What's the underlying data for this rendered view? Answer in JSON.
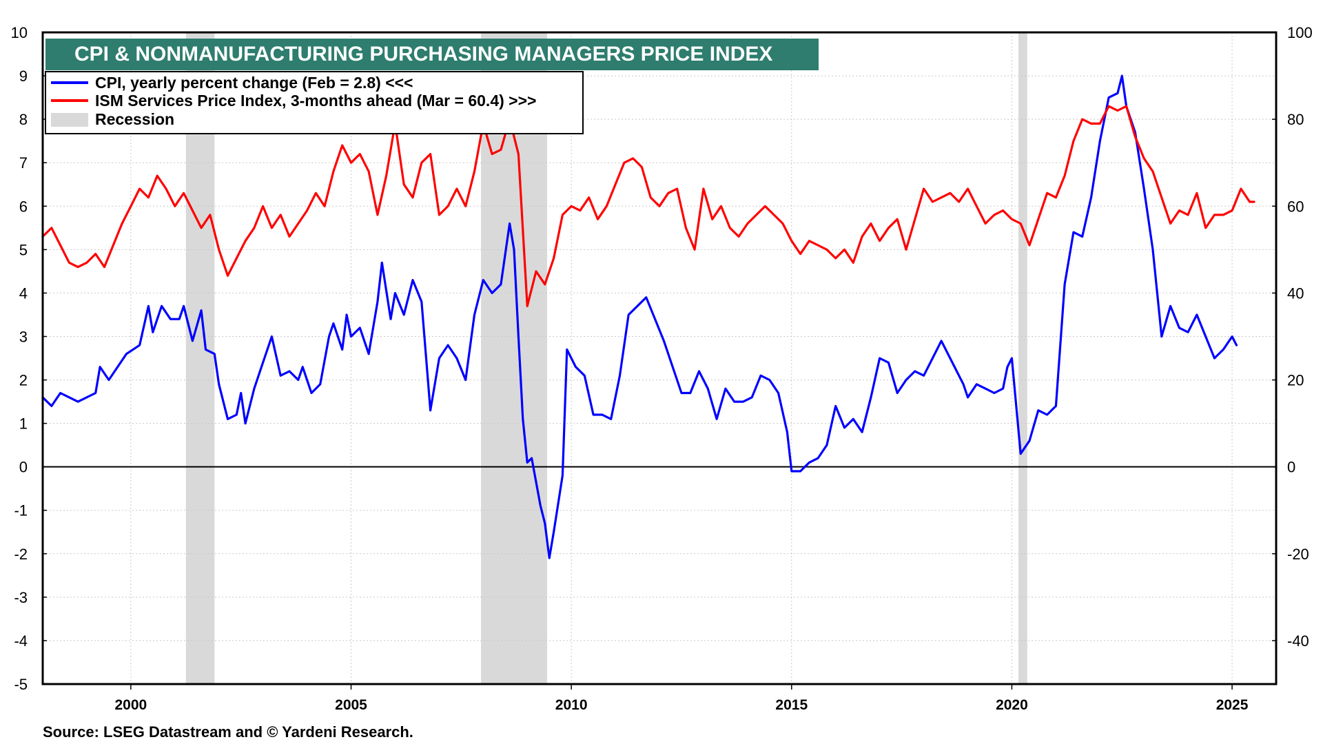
{
  "chart_data": {
    "type": "line",
    "title": "CPI & NONMANUFACTURING PURCHASING MANAGERS PRICE INDEX",
    "source": "Source: LSEG Datastream and © Yardeni Research.",
    "x_axis": {
      "min": 1998.0,
      "max": 2026.0,
      "ticks": [
        2000,
        2005,
        2010,
        2015,
        2020,
        2025
      ],
      "tick_labels": [
        "2000",
        "2005",
        "2010",
        "2015",
        "2020",
        "2025"
      ]
    },
    "y_axis_left": {
      "min": -5,
      "max": 10,
      "ticks": [
        -5,
        -4,
        -3,
        -2,
        -1,
        0,
        1,
        2,
        3,
        4,
        5,
        6,
        7,
        8,
        9,
        10
      ],
      "tick_labels": [
        "-5",
        "-4",
        "-3",
        "-2",
        "-1",
        "0",
        "1",
        "2",
        "3",
        "4",
        "5",
        "6",
        "7",
        "8",
        "9",
        "10"
      ]
    },
    "y_axis_right": {
      "min": -50,
      "max": 100,
      "ticks": [
        -40,
        -20,
        0,
        20,
        40,
        60,
        80,
        100
      ],
      "tick_labels": [
        "-40",
        "-20",
        "0",
        "20",
        "40",
        "60",
        "80",
        "100"
      ]
    },
    "legend": {
      "placement": "top-left",
      "entries": [
        {
          "label": "CPI, yearly percent change (Feb = 2.8) <<<",
          "color": "#0000ff",
          "kind": "line"
        },
        {
          "label": "ISM Services Price Index, 3-months ahead (Mar = 60.4) >>>",
          "color": "#ff0000",
          "kind": "line"
        },
        {
          "label": "Recession",
          "color": "#d9d9d9",
          "kind": "box"
        }
      ]
    },
    "recessions": [
      [
        2001.25,
        2001.9
      ],
      [
        2007.95,
        2009.45
      ],
      [
        2020.15,
        2020.35
      ]
    ],
    "series": [
      {
        "name": "CPI, yearly percent change",
        "axis": "left",
        "color": "#0000ff",
        "points": [
          [
            1998.0,
            1.6
          ],
          [
            1998.2,
            1.4
          ],
          [
            1998.4,
            1.7
          ],
          [
            1998.6,
            1.6
          ],
          [
            1998.8,
            1.5
          ],
          [
            1999.0,
            1.6
          ],
          [
            1999.2,
            1.7
          ],
          [
            1999.3,
            2.3
          ],
          [
            1999.5,
            2.0
          ],
          [
            1999.7,
            2.3
          ],
          [
            1999.9,
            2.6
          ],
          [
            2000.2,
            2.8
          ],
          [
            2000.4,
            3.7
          ],
          [
            2000.5,
            3.1
          ],
          [
            2000.7,
            3.7
          ],
          [
            2000.9,
            3.4
          ],
          [
            2001.1,
            3.4
          ],
          [
            2001.2,
            3.7
          ],
          [
            2001.4,
            2.9
          ],
          [
            2001.6,
            3.6
          ],
          [
            2001.7,
            2.7
          ],
          [
            2001.9,
            2.6
          ],
          [
            2002.0,
            1.9
          ],
          [
            2002.2,
            1.1
          ],
          [
            2002.4,
            1.2
          ],
          [
            2002.5,
            1.7
          ],
          [
            2002.6,
            1.0
          ],
          [
            2002.8,
            1.8
          ],
          [
            2003.0,
            2.4
          ],
          [
            2003.2,
            3.0
          ],
          [
            2003.4,
            2.1
          ],
          [
            2003.6,
            2.2
          ],
          [
            2003.8,
            2.0
          ],
          [
            2003.9,
            2.3
          ],
          [
            2004.1,
            1.7
          ],
          [
            2004.3,
            1.9
          ],
          [
            2004.5,
            3.0
          ],
          [
            2004.6,
            3.3
          ],
          [
            2004.8,
            2.7
          ],
          [
            2004.9,
            3.5
          ],
          [
            2005.0,
            3.0
          ],
          [
            2005.2,
            3.2
          ],
          [
            2005.4,
            2.6
          ],
          [
            2005.6,
            3.8
          ],
          [
            2005.7,
            4.7
          ],
          [
            2005.9,
            3.4
          ],
          [
            2006.0,
            4.0
          ],
          [
            2006.2,
            3.5
          ],
          [
            2006.4,
            4.3
          ],
          [
            2006.6,
            3.8
          ],
          [
            2006.8,
            1.3
          ],
          [
            2007.0,
            2.5
          ],
          [
            2007.2,
            2.8
          ],
          [
            2007.4,
            2.5
          ],
          [
            2007.6,
            2.0
          ],
          [
            2007.8,
            3.5
          ],
          [
            2008.0,
            4.3
          ],
          [
            2008.2,
            4.0
          ],
          [
            2008.4,
            4.2
          ],
          [
            2008.6,
            5.6
          ],
          [
            2008.7,
            5.0
          ],
          [
            2008.8,
            3.0
          ],
          [
            2008.9,
            1.1
          ],
          [
            2009.0,
            0.1
          ],
          [
            2009.1,
            0.2
          ],
          [
            2009.3,
            -0.9
          ],
          [
            2009.4,
            -1.3
          ],
          [
            2009.5,
            -2.1
          ],
          [
            2009.6,
            -1.5
          ],
          [
            2009.8,
            -0.2
          ],
          [
            2009.9,
            2.7
          ],
          [
            2010.1,
            2.3
          ],
          [
            2010.3,
            2.1
          ],
          [
            2010.5,
            1.2
          ],
          [
            2010.7,
            1.2
          ],
          [
            2010.9,
            1.1
          ],
          [
            2011.1,
            2.1
          ],
          [
            2011.3,
            3.5
          ],
          [
            2011.5,
            3.7
          ],
          [
            2011.7,
            3.9
          ],
          [
            2011.9,
            3.4
          ],
          [
            2012.1,
            2.9
          ],
          [
            2012.3,
            2.3
          ],
          [
            2012.5,
            1.7
          ],
          [
            2012.7,
            1.7
          ],
          [
            2012.9,
            2.2
          ],
          [
            2013.1,
            1.8
          ],
          [
            2013.3,
            1.1
          ],
          [
            2013.5,
            1.8
          ],
          [
            2013.7,
            1.5
          ],
          [
            2013.9,
            1.5
          ],
          [
            2014.1,
            1.6
          ],
          [
            2014.3,
            2.1
          ],
          [
            2014.5,
            2.0
          ],
          [
            2014.7,
            1.7
          ],
          [
            2014.9,
            0.8
          ],
          [
            2015.0,
            -0.1
          ],
          [
            2015.2,
            -0.1
          ],
          [
            2015.4,
            0.1
          ],
          [
            2015.6,
            0.2
          ],
          [
            2015.8,
            0.5
          ],
          [
            2016.0,
            1.4
          ],
          [
            2016.2,
            0.9
          ],
          [
            2016.4,
            1.1
          ],
          [
            2016.6,
            0.8
          ],
          [
            2016.8,
            1.6
          ],
          [
            2017.0,
            2.5
          ],
          [
            2017.2,
            2.4
          ],
          [
            2017.4,
            1.7
          ],
          [
            2017.6,
            2.0
          ],
          [
            2017.8,
            2.2
          ],
          [
            2018.0,
            2.1
          ],
          [
            2018.2,
            2.5
          ],
          [
            2018.4,
            2.9
          ],
          [
            2018.5,
            2.7
          ],
          [
            2018.7,
            2.3
          ],
          [
            2018.9,
            1.9
          ],
          [
            2019.0,
            1.6
          ],
          [
            2019.2,
            1.9
          ],
          [
            2019.4,
            1.8
          ],
          [
            2019.6,
            1.7
          ],
          [
            2019.8,
            1.8
          ],
          [
            2019.9,
            2.3
          ],
          [
            2020.0,
            2.5
          ],
          [
            2020.2,
            0.3
          ],
          [
            2020.4,
            0.6
          ],
          [
            2020.6,
            1.3
          ],
          [
            2020.8,
            1.2
          ],
          [
            2021.0,
            1.4
          ],
          [
            2021.2,
            4.2
          ],
          [
            2021.4,
            5.4
          ],
          [
            2021.6,
            5.3
          ],
          [
            2021.8,
            6.2
          ],
          [
            2022.0,
            7.5
          ],
          [
            2022.2,
            8.5
          ],
          [
            2022.4,
            8.6
          ],
          [
            2022.5,
            9.0
          ],
          [
            2022.6,
            8.3
          ],
          [
            2022.8,
            7.7
          ],
          [
            2023.0,
            6.4
          ],
          [
            2023.2,
            5.0
          ],
          [
            2023.4,
            3.0
          ],
          [
            2023.6,
            3.7
          ],
          [
            2023.8,
            3.2
          ],
          [
            2024.0,
            3.1
          ],
          [
            2024.2,
            3.5
          ],
          [
            2024.4,
            3.0
          ],
          [
            2024.6,
            2.5
          ],
          [
            2024.8,
            2.7
          ],
          [
            2025.0,
            3.0
          ],
          [
            2025.1,
            2.8
          ]
        ]
      },
      {
        "name": "ISM Services Price Index, 3-months ahead",
        "axis": "right",
        "color": "#ff0000",
        "points": [
          [
            1998.0,
            53
          ],
          [
            1998.2,
            55
          ],
          [
            1998.4,
            51
          ],
          [
            1998.6,
            47
          ],
          [
            1998.8,
            46
          ],
          [
            1999.0,
            47
          ],
          [
            1999.2,
            49
          ],
          [
            1999.4,
            46
          ],
          [
            1999.6,
            51
          ],
          [
            1999.8,
            56
          ],
          [
            2000.0,
            60
          ],
          [
            2000.2,
            64
          ],
          [
            2000.4,
            62
          ],
          [
            2000.6,
            67
          ],
          [
            2000.8,
            64
          ],
          [
            2001.0,
            60
          ],
          [
            2001.2,
            63
          ],
          [
            2001.4,
            59
          ],
          [
            2001.6,
            55
          ],
          [
            2001.8,
            58
          ],
          [
            2002.0,
            50
          ],
          [
            2002.2,
            44
          ],
          [
            2002.4,
            48
          ],
          [
            2002.6,
            52
          ],
          [
            2002.8,
            55
          ],
          [
            2003.0,
            60
          ],
          [
            2003.2,
            55
          ],
          [
            2003.4,
            58
          ],
          [
            2003.6,
            53
          ],
          [
            2003.8,
            56
          ],
          [
            2004.0,
            59
          ],
          [
            2004.2,
            63
          ],
          [
            2004.4,
            60
          ],
          [
            2004.6,
            68
          ],
          [
            2004.8,
            74
          ],
          [
            2005.0,
            70
          ],
          [
            2005.2,
            72
          ],
          [
            2005.4,
            68
          ],
          [
            2005.6,
            58
          ],
          [
            2005.8,
            67
          ],
          [
            2006.0,
            79
          ],
          [
            2006.2,
            65
          ],
          [
            2006.4,
            62
          ],
          [
            2006.6,
            70
          ],
          [
            2006.8,
            72
          ],
          [
            2007.0,
            58
          ],
          [
            2007.2,
            60
          ],
          [
            2007.4,
            64
          ],
          [
            2007.6,
            60
          ],
          [
            2007.8,
            68
          ],
          [
            2008.0,
            79
          ],
          [
            2008.2,
            72
          ],
          [
            2008.4,
            73
          ],
          [
            2008.6,
            80
          ],
          [
            2008.8,
            72
          ],
          [
            2009.0,
            37
          ],
          [
            2009.2,
            45
          ],
          [
            2009.4,
            42
          ],
          [
            2009.6,
            48
          ],
          [
            2009.8,
            58
          ],
          [
            2010.0,
            60
          ],
          [
            2010.2,
            59
          ],
          [
            2010.4,
            62
          ],
          [
            2010.6,
            57
          ],
          [
            2010.8,
            60
          ],
          [
            2011.0,
            65
          ],
          [
            2011.2,
            70
          ],
          [
            2011.4,
            71
          ],
          [
            2011.6,
            69
          ],
          [
            2011.8,
            62
          ],
          [
            2012.0,
            60
          ],
          [
            2012.2,
            63
          ],
          [
            2012.4,
            64
          ],
          [
            2012.6,
            55
          ],
          [
            2012.8,
            50
          ],
          [
            2013.0,
            64
          ],
          [
            2013.2,
            57
          ],
          [
            2013.4,
            60
          ],
          [
            2013.6,
            55
          ],
          [
            2013.8,
            53
          ],
          [
            2014.0,
            56
          ],
          [
            2014.2,
            58
          ],
          [
            2014.4,
            60
          ],
          [
            2014.6,
            58
          ],
          [
            2014.8,
            56
          ],
          [
            2015.0,
            52
          ],
          [
            2015.2,
            49
          ],
          [
            2015.4,
            52
          ],
          [
            2015.6,
            51
          ],
          [
            2015.8,
            50
          ],
          [
            2016.0,
            48
          ],
          [
            2016.2,
            50
          ],
          [
            2016.4,
            47
          ],
          [
            2016.6,
            53
          ],
          [
            2016.8,
            56
          ],
          [
            2017.0,
            52
          ],
          [
            2017.2,
            55
          ],
          [
            2017.4,
            57
          ],
          [
            2017.6,
            50
          ],
          [
            2017.8,
            57
          ],
          [
            2018.0,
            64
          ],
          [
            2018.2,
            61
          ],
          [
            2018.4,
            62
          ],
          [
            2018.6,
            63
          ],
          [
            2018.8,
            61
          ],
          [
            2019.0,
            64
          ],
          [
            2019.2,
            60
          ],
          [
            2019.4,
            56
          ],
          [
            2019.6,
            58
          ],
          [
            2019.8,
            59
          ],
          [
            2020.0,
            57
          ],
          [
            2020.2,
            56
          ],
          [
            2020.4,
            51
          ],
          [
            2020.6,
            57
          ],
          [
            2020.8,
            63
          ],
          [
            2021.0,
            62
          ],
          [
            2021.2,
            67
          ],
          [
            2021.4,
            75
          ],
          [
            2021.6,
            80
          ],
          [
            2021.8,
            79
          ],
          [
            2022.0,
            79
          ],
          [
            2022.2,
            83
          ],
          [
            2022.4,
            82
          ],
          [
            2022.6,
            83
          ],
          [
            2022.8,
            76
          ],
          [
            2023.0,
            71
          ],
          [
            2023.2,
            68
          ],
          [
            2023.4,
            62
          ],
          [
            2023.6,
            56
          ],
          [
            2023.8,
            59
          ],
          [
            2024.0,
            58
          ],
          [
            2024.2,
            63
          ],
          [
            2024.4,
            55
          ],
          [
            2024.6,
            58
          ],
          [
            2024.8,
            58
          ],
          [
            2025.0,
            59
          ],
          [
            2025.2,
            64
          ],
          [
            2025.4,
            61
          ],
          [
            2025.5,
            61
          ]
        ]
      }
    ]
  }
}
